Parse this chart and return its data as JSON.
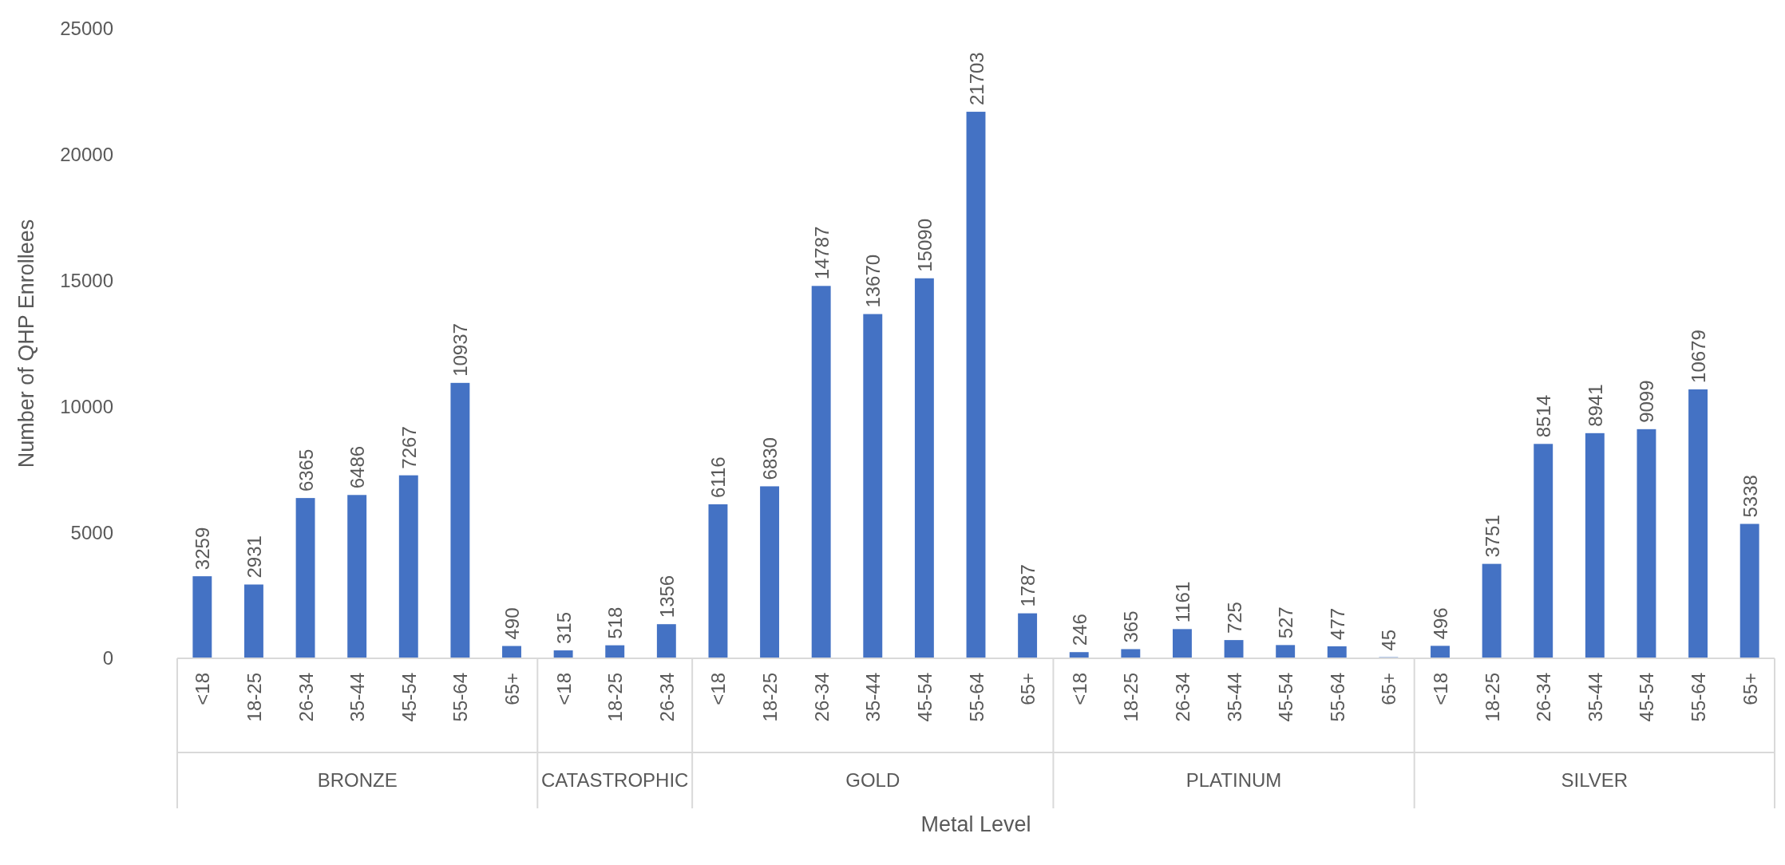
{
  "chart_data": {
    "type": "bar",
    "xlabel": "Metal Level",
    "ylabel": "Number of QHP Enrollees",
    "categories": [
      "<18",
      "18-25",
      "26-34",
      "35-44",
      "45-54",
      "55-64",
      "65+",
      "<18",
      "18-25",
      "26-34",
      "<18",
      "18-25",
      "26-34",
      "35-44",
      "45-54",
      "55-64",
      "65+",
      "<18",
      "18-25",
      "26-34",
      "35-44",
      "45-54",
      "55-64",
      "65+",
      "<18",
      "18-25",
      "26-34",
      "35-44",
      "45-54",
      "55-64",
      "65+"
    ],
    "values": [
      3259,
      2931,
      6365,
      6486,
      7267,
      10937,
      490,
      315,
      518,
      1356,
      6116,
      6830,
      14787,
      13670,
      15090,
      21703,
      1787,
      246,
      365,
      1161,
      725,
      527,
      477,
      45,
      496,
      3751,
      8514,
      8941,
      9099,
      10679,
      5338
    ],
    "color": "#4472c4",
    "ylim": [
      0,
      25000
    ],
    "yticks": [
      0,
      5000,
      10000,
      15000,
      20000,
      25000
    ],
    "data_labels": true,
    "annotations": [
      "BRONZE",
      "CATASTROPHIC",
      "GOLD",
      "PLATINUM",
      "SILVER"
    ]
  }
}
